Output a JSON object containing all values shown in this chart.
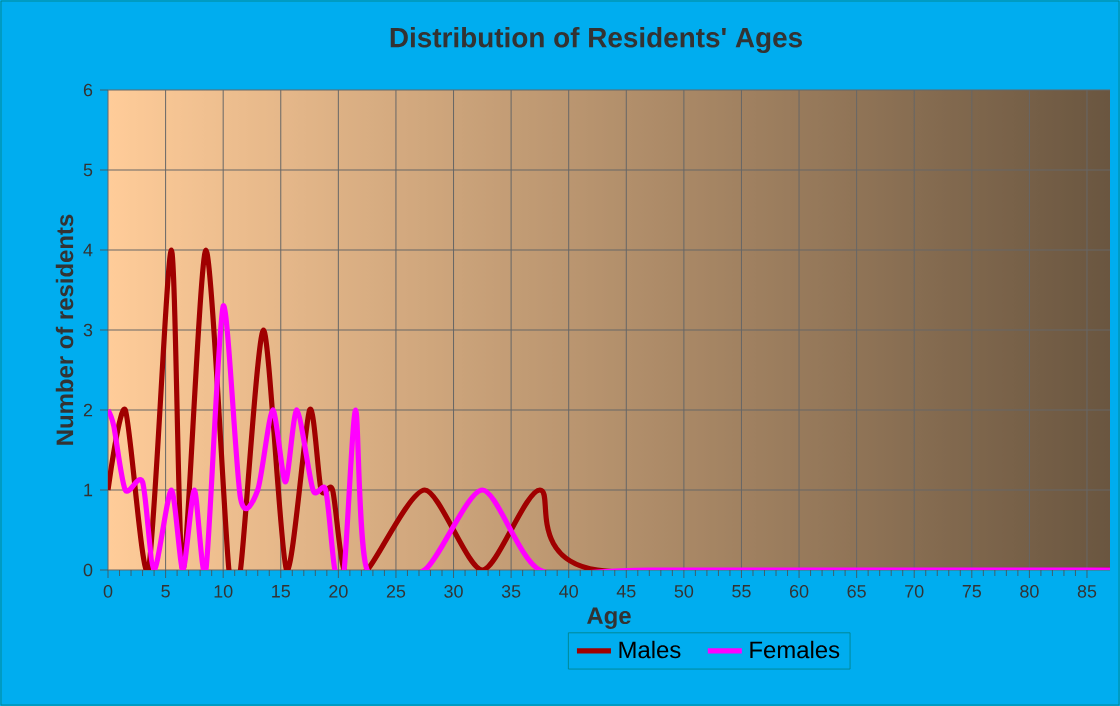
{
  "chart_data": {
    "type": "line",
    "title": "Distribution of Residents' Ages",
    "xlabel": "Age",
    "ylabel": "Number of residents",
    "xlim": [
      0,
      87
    ],
    "xticks": [
      0,
      5,
      10,
      15,
      20,
      25,
      30,
      35,
      40,
      45,
      50,
      55,
      60,
      65,
      70,
      75,
      80,
      85
    ],
    "ylim": [
      0,
      6
    ],
    "yticks": [
      0,
      1,
      2,
      3,
      4,
      5,
      6
    ],
    "grid": true,
    "legend": "bottom",
    "marker": "none",
    "line_style": "solid",
    "series": [
      {
        "name": "Males",
        "color": "#a00000",
        "x": [
          0,
          1.5,
          3.5,
          5.5,
          6.5,
          8.5,
          10.5,
          11.5,
          13.5,
          15.5,
          17.5,
          18.5,
          19.5,
          20.5,
          22.5,
          27.5,
          32.5,
          37.5,
          42.5,
          87
        ],
        "values": [
          1,
          2,
          0,
          4,
          0,
          4,
          0,
          0,
          3,
          0,
          2,
          1,
          1,
          0,
          0,
          1,
          0,
          1,
          0,
          0
        ]
      },
      {
        "name": "Females",
        "color": "#ff00ff",
        "x": [
          0,
          0.5,
          1.5,
          3,
          4,
          5.5,
          6.5,
          7.5,
          8.5,
          10,
          11.5,
          13,
          14.3,
          15.4,
          16.4,
          17.8,
          18.9,
          19.7,
          20.5,
          21.5,
          22.5,
          27.5,
          32.5,
          37.5,
          47,
          87
        ],
        "values": [
          2,
          1.8,
          1,
          1.1,
          0,
          1,
          0,
          1,
          0,
          3.3,
          0.9,
          1,
          2,
          1.1,
          2,
          1,
          1,
          0,
          0,
          2,
          0,
          0,
          1,
          0,
          0,
          0
        ]
      }
    ]
  }
}
